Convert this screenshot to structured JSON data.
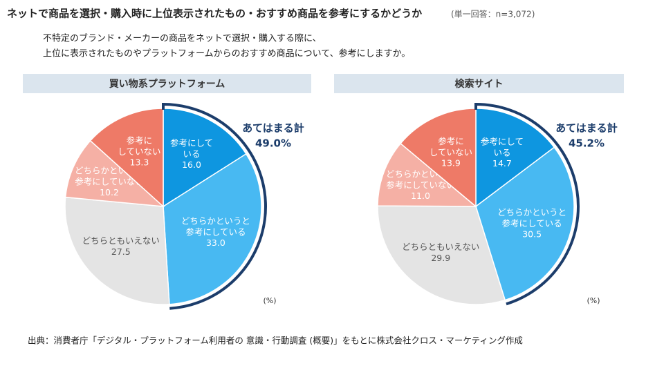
{
  "title": "ネットで商品を選択・購入時に上位表示されたもの・おすすめ商品を参考にするかどうか",
  "note": "(単一回答：n=3,072)",
  "question": [
    "不特定のブランド・メーカーの商品をネットで選択・購入する際に、",
    "上位に表示されたものやプラットフォームからのおすすめ商品について、参考にしますか。"
  ],
  "source": "出典：消費者庁「デジタル・プラットフォーム利用者の 意識・行動調査 (概要)」をもとに株式会社クロス・マーケティング作成",
  "chart_data": [
    {
      "type": "pie",
      "title": "買い物系プラットフォーム",
      "categories": [
        "参考にして\nいる",
        "どちらかというと\n参考にしている",
        "どちらともいえない",
        "どちらかというと\n参考にしていない",
        "参考に\nしていない"
      ],
      "values": [
        16.0,
        33.0,
        27.5,
        10.2,
        13.3
      ],
      "value_labels": [
        "16.0",
        "33.0",
        "27.5",
        "10.2",
        "13.3"
      ],
      "colors": [
        "#0e96e0",
        "#48b9f2",
        "#e4e4e4",
        "#f5b0a5",
        "#ee7a67"
      ],
      "unit": "(%)",
      "summary_label": "あてはまる計",
      "summary_value": {
        "value": 49.0,
        "label": "49.0%"
      }
    },
    {
      "type": "pie",
      "title": "検索サイト",
      "categories": [
        "参考にして\nいる",
        "どちらかというと\n参考にしている",
        "どちらともいえない",
        "どちらかというと\n参考にしていない",
        "参考に\nしていない"
      ],
      "values": [
        14.7,
        30.5,
        29.9,
        11.0,
        13.9
      ],
      "value_labels": [
        "14.7",
        "30.5",
        "29.9",
        "11.0",
        "13.9"
      ],
      "colors": [
        "#0e96e0",
        "#48b9f2",
        "#e4e4e4",
        "#f5b0a5",
        "#ee7a67"
      ],
      "unit": "(%)",
      "summary_label": "あてはまる計",
      "summary_value": {
        "value": 45.2,
        "label": "45.2%"
      }
    }
  ]
}
